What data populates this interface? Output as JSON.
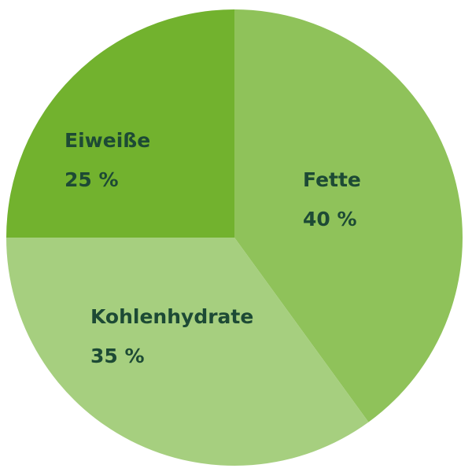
{
  "chart_data": {
    "type": "pie",
    "categories": [
      "Fette",
      "Kohlenhydrate",
      "Eiweiße"
    ],
    "values": [
      40,
      35,
      25
    ],
    "value_labels": [
      "40 %",
      "35 %",
      "25 %"
    ],
    "colors": [
      "#8fc25a",
      "#a6cf7f",
      "#72b22e"
    ]
  }
}
